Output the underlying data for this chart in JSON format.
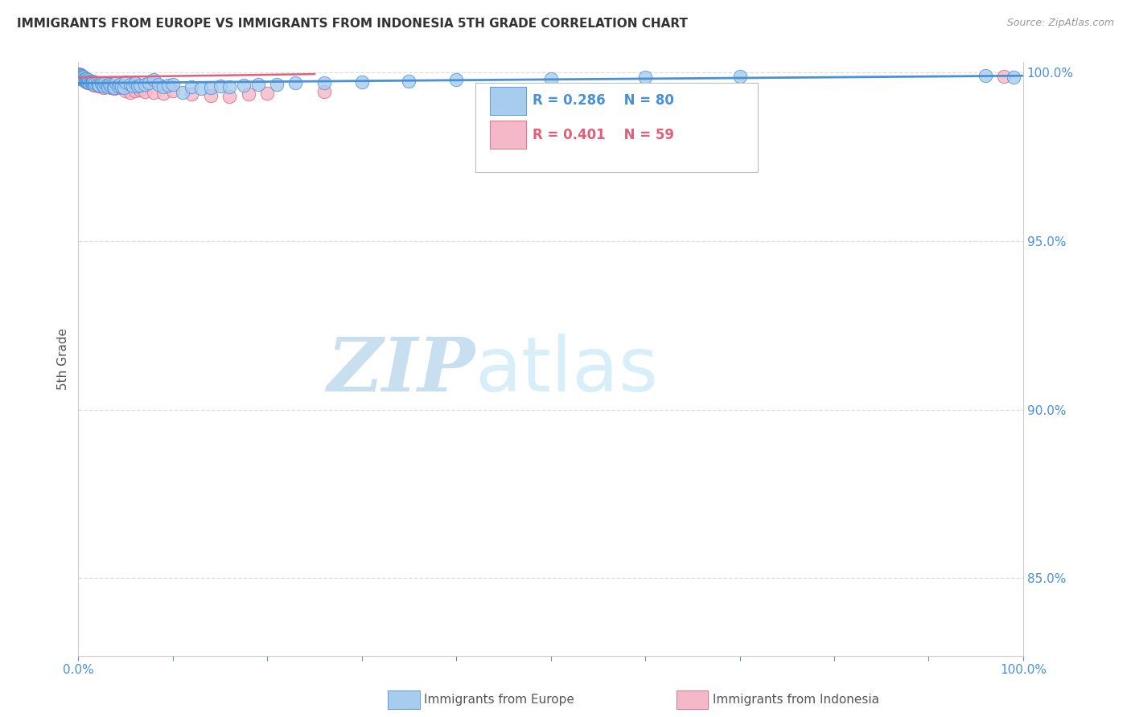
{
  "title": "IMMIGRANTS FROM EUROPE VS IMMIGRANTS FROM INDONESIA 5TH GRADE CORRELATION CHART",
  "source": "Source: ZipAtlas.com",
  "ylabel": "5th Grade",
  "ytick_labels": [
    "100.0%",
    "95.0%",
    "90.0%",
    "85.0%"
  ],
  "ytick_values": [
    1.0,
    0.95,
    0.9,
    0.85
  ],
  "legend_blue_label": "Immigrants from Europe",
  "legend_pink_label": "Immigrants from Indonesia",
  "legend_r_blue": "R = 0.286",
  "legend_n_blue": "N = 80",
  "legend_r_pink": "R = 0.401",
  "legend_n_pink": "N = 59",
  "blue_color": "#a8ccee",
  "pink_color": "#f5b8c8",
  "trendline_blue_color": "#4a90d9",
  "trendline_pink_color": "#e0607a",
  "blue_scatter_x": [
    0.001,
    0.001,
    0.002,
    0.002,
    0.002,
    0.003,
    0.003,
    0.003,
    0.004,
    0.004,
    0.005,
    0.005,
    0.006,
    0.006,
    0.007,
    0.007,
    0.008,
    0.008,
    0.009,
    0.01,
    0.01,
    0.011,
    0.012,
    0.013,
    0.014,
    0.015,
    0.015,
    0.016,
    0.017,
    0.018,
    0.02,
    0.021,
    0.022,
    0.024,
    0.025,
    0.027,
    0.028,
    0.03,
    0.031,
    0.033,
    0.035,
    0.037,
    0.038,
    0.04,
    0.042,
    0.044,
    0.046,
    0.048,
    0.05,
    0.055,
    0.058,
    0.06,
    0.063,
    0.065,
    0.07,
    0.075,
    0.08,
    0.085,
    0.09,
    0.095,
    0.1,
    0.11,
    0.12,
    0.13,
    0.14,
    0.15,
    0.16,
    0.175,
    0.19,
    0.21,
    0.23,
    0.26,
    0.3,
    0.35,
    0.4,
    0.5,
    0.6,
    0.7,
    0.96,
    0.99
  ],
  "blue_scatter_y": [
    0.999,
    0.9985,
    0.9992,
    0.9988,
    0.9982,
    0.999,
    0.9985,
    0.998,
    0.9988,
    0.9983,
    0.9988,
    0.9982,
    0.9985,
    0.9978,
    0.9982,
    0.9976,
    0.998,
    0.9973,
    0.9975,
    0.9978,
    0.9972,
    0.9975,
    0.997,
    0.9972,
    0.9968,
    0.9975,
    0.9968,
    0.9972,
    0.9965,
    0.997,
    0.9968,
    0.9965,
    0.9962,
    0.9968,
    0.9965,
    0.996,
    0.9968,
    0.9962,
    0.9958,
    0.9965,
    0.996,
    0.9958,
    0.9955,
    0.9968,
    0.996,
    0.9965,
    0.9958,
    0.9955,
    0.9972,
    0.9965,
    0.996,
    0.9968,
    0.996,
    0.9962,
    0.9965,
    0.9968,
    0.9978,
    0.9965,
    0.9958,
    0.9962,
    0.9965,
    0.994,
    0.9958,
    0.9952,
    0.9955,
    0.996,
    0.9958,
    0.9962,
    0.9965,
    0.9965,
    0.9968,
    0.997,
    0.9972,
    0.9975,
    0.9978,
    0.9982,
    0.9985,
    0.9988,
    0.999,
    0.9985
  ],
  "pink_scatter_x": [
    0.0003,
    0.0005,
    0.001,
    0.001,
    0.001,
    0.002,
    0.002,
    0.002,
    0.003,
    0.003,
    0.003,
    0.004,
    0.004,
    0.005,
    0.005,
    0.006,
    0.006,
    0.007,
    0.007,
    0.008,
    0.008,
    0.009,
    0.01,
    0.01,
    0.011,
    0.012,
    0.013,
    0.014,
    0.015,
    0.016,
    0.017,
    0.018,
    0.02,
    0.021,
    0.022,
    0.025,
    0.027,
    0.03,
    0.032,
    0.035,
    0.038,
    0.04,
    0.042,
    0.045,
    0.05,
    0.055,
    0.06,
    0.065,
    0.07,
    0.08,
    0.09,
    0.1,
    0.12,
    0.14,
    0.16,
    0.18,
    0.2,
    0.26,
    0.98
  ],
  "pink_scatter_y": [
    0.9995,
    0.9993,
    0.9992,
    0.999,
    0.9988,
    0.9992,
    0.999,
    0.9985,
    0.999,
    0.9988,
    0.9982,
    0.9988,
    0.9985,
    0.9985,
    0.998,
    0.9983,
    0.9978,
    0.998,
    0.9975,
    0.9978,
    0.9972,
    0.9975,
    0.9978,
    0.997,
    0.9972,
    0.9968,
    0.9968,
    0.9972,
    0.997,
    0.9965,
    0.9962,
    0.9968,
    0.9965,
    0.996,
    0.9962,
    0.9958,
    0.9955,
    0.996,
    0.9958,
    0.9955,
    0.9952,
    0.996,
    0.9955,
    0.9958,
    0.9945,
    0.994,
    0.9945,
    0.9948,
    0.9942,
    0.994,
    0.9938,
    0.9945,
    0.9935,
    0.9932,
    0.9928,
    0.9935,
    0.9938,
    0.9942,
    0.9988
  ],
  "blue_trend_x": [
    0.0,
    1.0
  ],
  "blue_trend_y": [
    0.9968,
    0.999
  ],
  "pink_trend_x": [
    0.0,
    0.25
  ],
  "pink_trend_y": [
    0.9985,
    0.9995
  ],
  "watermark_zip": "ZIP",
  "watermark_atlas": "atlas",
  "watermark_color": "#d8eef8",
  "xlim": [
    0.0,
    1.0
  ],
  "ylim": [
    0.827,
    1.003
  ]
}
